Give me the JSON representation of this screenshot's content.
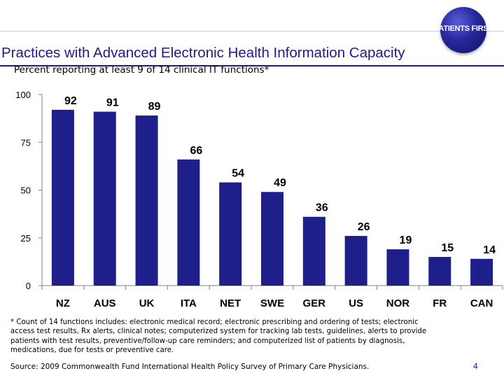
{
  "logo": {
    "text": "PATIENTS FIRST"
  },
  "slide": {
    "title": "Practices with Advanced Electronic Health Information Capacity",
    "subtitle": "Percent reporting at least 9 of 14 clinical IT functions*",
    "footnote": "* Count of 14 functions includes: electronic medical record; electronic prescribing and ordering of tests; electronic access test results, Rx alerts, clinical notes; computerized system for tracking lab tests, guidelines, alerts to provide patients with test results, preventive/follow-up care reminders; and computerized list of patients by diagnosis, medications, due for tests or preventive care.",
    "source": "Source: 2009 Commonwealth Fund International Health Policy Survey of Primary Care Physicians.",
    "page_number": "4"
  },
  "chart_data": {
    "type": "bar",
    "title": "",
    "xlabel": "",
    "ylabel": "",
    "categories": [
      "NZ",
      "AUS",
      "UK",
      "ITA",
      "NET",
      "SWE",
      "GER",
      "US",
      "NOR",
      "FR",
      "CAN"
    ],
    "values": [
      92,
      91,
      89,
      66,
      54,
      49,
      36,
      26,
      19,
      15,
      14
    ],
    "ylim": [
      0,
      100
    ],
    "yticks": [
      0,
      25,
      50,
      75,
      100
    ],
    "grid": false,
    "bar_color": "#1f1f8c",
    "label_color": "#000000"
  }
}
